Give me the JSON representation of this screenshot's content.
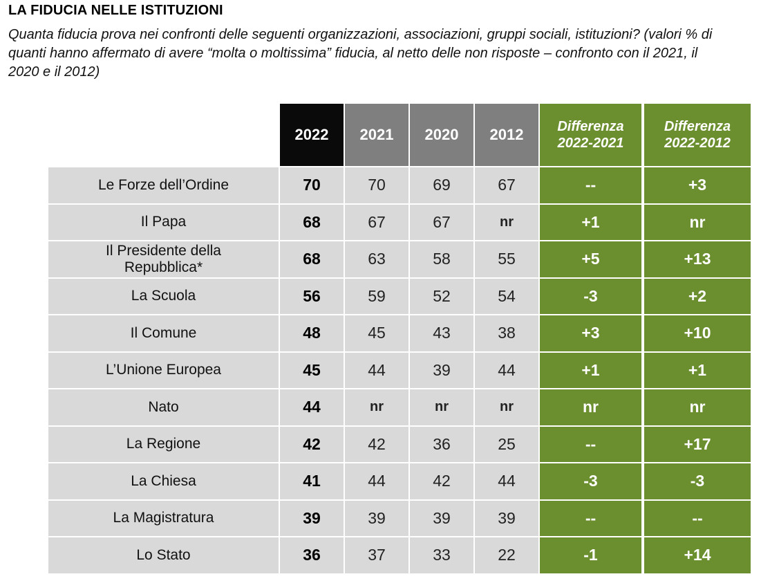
{
  "header": {
    "title": "LA FIDUCIA NELLE ISTITUZIONI",
    "subtitle": "Quanta fiducia prova nei confronti delle seguenti organizzazioni, associazioni, gruppi sociali, istituzioni? (valori % di quanti hanno affermato di avere “molta o moltissima” fiducia, al netto delle non risposte – confronto con il 2021, il 2020 e il 2012)"
  },
  "table": {
    "columns": {
      "y2022": "2022",
      "y2021": "2021",
      "y2020": "2020",
      "y2012": "2012",
      "diff2021_line1": "Differenza",
      "diff2021_line2": "2022-2021",
      "diff2012_line1": "Differenza",
      "diff2012_line2": "2022-2012"
    },
    "rows": [
      {
        "label": "Le Forze dell’Ordine",
        "y2022": "70",
        "y2021": "70",
        "y2020": "69",
        "y2012": "67",
        "d2021": "--",
        "d2012": "+3"
      },
      {
        "label": "Il Papa",
        "y2022": "68",
        "y2021": "67",
        "y2020": "67",
        "y2012": "nr",
        "d2021": "+1",
        "d2012": "nr"
      },
      {
        "label": "Il Presidente della Repubblica*",
        "y2022": "68",
        "y2021": "63",
        "y2020": "58",
        "y2012": "55",
        "d2021": "+5",
        "d2012": "+13"
      },
      {
        "label": "La Scuola",
        "y2022": "56",
        "y2021": "59",
        "y2020": "52",
        "y2012": "54",
        "d2021": "-3",
        "d2012": "+2"
      },
      {
        "label": "Il Comune",
        "y2022": "48",
        "y2021": "45",
        "y2020": "43",
        "y2012": "38",
        "d2021": "+3",
        "d2012": "+10"
      },
      {
        "label": "L’Unione Europea",
        "y2022": "45",
        "y2021": "44",
        "y2020": "39",
        "y2012": "44",
        "d2021": "+1",
        "d2012": "+1"
      },
      {
        "label": "Nato",
        "y2022": "44",
        "y2021": "nr",
        "y2020": "nr",
        "y2012": "nr",
        "d2021": "nr",
        "d2012": "nr"
      },
      {
        "label": "La Regione",
        "y2022": "42",
        "y2021": "42",
        "y2020": "36",
        "y2012": "25",
        "d2021": "--",
        "d2012": "+17"
      },
      {
        "label": "La Chiesa",
        "y2022": "41",
        "y2021": "44",
        "y2020": "42",
        "y2012": "44",
        "d2021": "-3",
        "d2012": "-3"
      },
      {
        "label": "La Magistratura",
        "y2022": "39",
        "y2021": "39",
        "y2020": "39",
        "y2012": "39",
        "d2021": "--",
        "d2012": "--"
      },
      {
        "label": "Lo Stato",
        "y2022": "36",
        "y2021": "37",
        "y2020": "33",
        "y2012": "22",
        "d2021": "-1",
        "d2012": "+14"
      }
    ]
  }
}
